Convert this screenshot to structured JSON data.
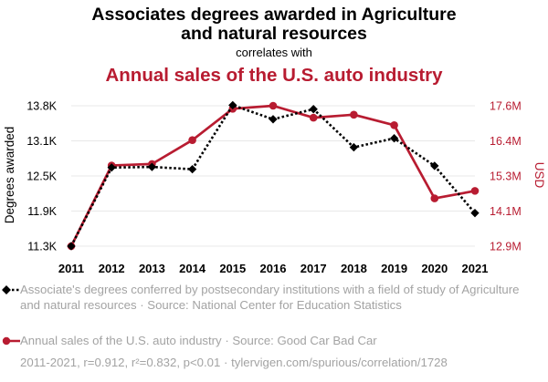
{
  "chart_data": {
    "type": "line",
    "title": [
      "Associates degrees awarded in Agriculture",
      "and natural resources"
    ],
    "connector": "correlates with",
    "subtitle": "Annual sales of the U.S. auto industry",
    "x": [
      2011,
      2012,
      2013,
      2014,
      2015,
      2016,
      2017,
      2018,
      2019,
      2020,
      2021
    ],
    "y_left": {
      "label": "Degrees awarded",
      "ticks": [
        "11.3K",
        "11.9K",
        "12.5K",
        "13.1K",
        "13.8K"
      ],
      "range": [
        11300,
        13800
      ]
    },
    "y_right": {
      "label": "USD",
      "ticks": [
        "12.9M",
        "14.1M",
        "15.3M",
        "16.4M",
        "17.6M"
      ],
      "range": [
        12900000,
        17600000
      ]
    },
    "series": [
      {
        "name": "Associate's degrees conferred by postsecondary institutions with a field of study of Agriculture and natural resources",
        "axis": "left",
        "color": "#000000",
        "style": "dotted",
        "marker": "diamond",
        "values": [
          11300,
          12700,
          12710,
          12670,
          13810,
          13560,
          13740,
          13060,
          13220,
          12730,
          11890
        ]
      },
      {
        "name": "Annual sales of the U.S. auto industry",
        "axis": "right",
        "color": "#b81c31",
        "style": "solid",
        "marker": "circle",
        "values": [
          12900000,
          15600000,
          15650000,
          16450000,
          17500000,
          17600000,
          17200000,
          17300000,
          16950000,
          14500000,
          14750000
        ]
      }
    ],
    "legend": [
      "Associate's degrees conferred by postsecondary institutions with a field of study of Agriculture and natural resources · Source: National Center for Education Statistics",
      "Annual sales of the U.S. auto industry · Source: Good Car Bad Car"
    ],
    "footer": "2011-2021, r=0.912, r²=0.832, p<0.01 · tylervigen.com/spurious/correlation/1728",
    "colors": {
      "accent": "#b81c31",
      "primary": "#000000",
      "grid": "#e8e8e8",
      "muted": "#a3a3a3"
    }
  }
}
